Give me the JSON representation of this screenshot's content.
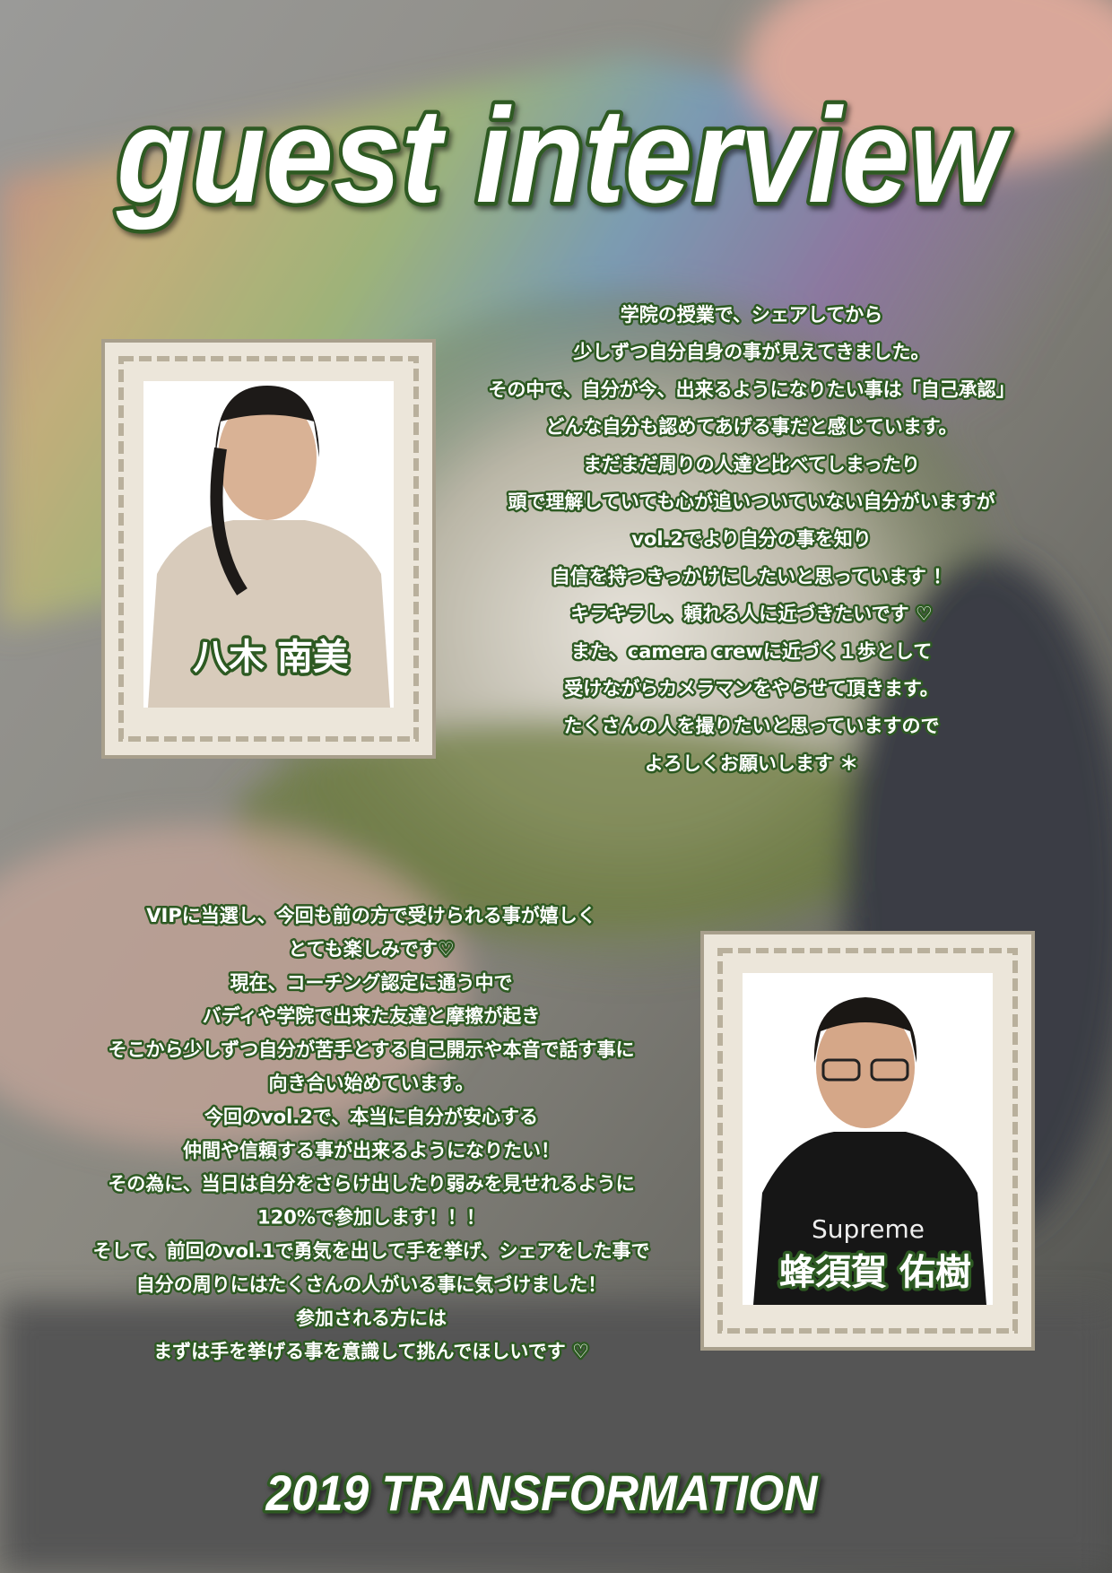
{
  "title": "guest interview",
  "guests": [
    {
      "name": "八木 南美",
      "lines": [
        "学院の授業で、シェアしてから",
        "少しずつ自分自身の事が見えてきました。",
        "その中で、自分が今、出来るようになりたい事は「自己承認」",
        "どんな自分も認めてあげる事だと感じています。",
        "まだまだ周りの人達と比べてしまったり",
        "頭で理解していても心が追いついていない自分がいますが",
        "vol.2でより自分の事を知り",
        "自信を持つきっかけにしたいと思っています ！",
        "キラキラし、頼れる人に近づきたいです ♡",
        "また、camera crewに近づく１歩として",
        "受けながらカメラマンをやらせて頂きます。",
        "たくさんの人を撮りたいと思っていますので",
        "よろしくお願いします ＊"
      ]
    },
    {
      "name": "蜂須賀 佑樹",
      "lines": [
        "VIPに当選し、今回も前の方で受けられる事が嬉しく",
        "とても楽しみです♡",
        "現在、コーチング認定に通う中で",
        "バディや学院で出来た友達と摩擦が起き",
        "そこから少しずつ自分が苦手とする自己開示や本音で話す事に",
        "向き合い始めています。",
        "今回のvol.2で、本当に自分が安心する",
        "仲間や信頼する事が出来るようになりたい！",
        "その為に、当日は自分をさらけ出したり弱みを見せれるように",
        "120%で参加します！！！",
        "そして、前回のvol.1で勇気を出して手を挙げ、シェアをした事で",
        "自分の周りにはたくさんの人がいる事に気づけました！",
        "参加される方には",
        "まずは手を挙げる事を意識して挑んでほしいです ♡"
      ]
    }
  ],
  "footer": "2019 TRANSFORMATION"
}
